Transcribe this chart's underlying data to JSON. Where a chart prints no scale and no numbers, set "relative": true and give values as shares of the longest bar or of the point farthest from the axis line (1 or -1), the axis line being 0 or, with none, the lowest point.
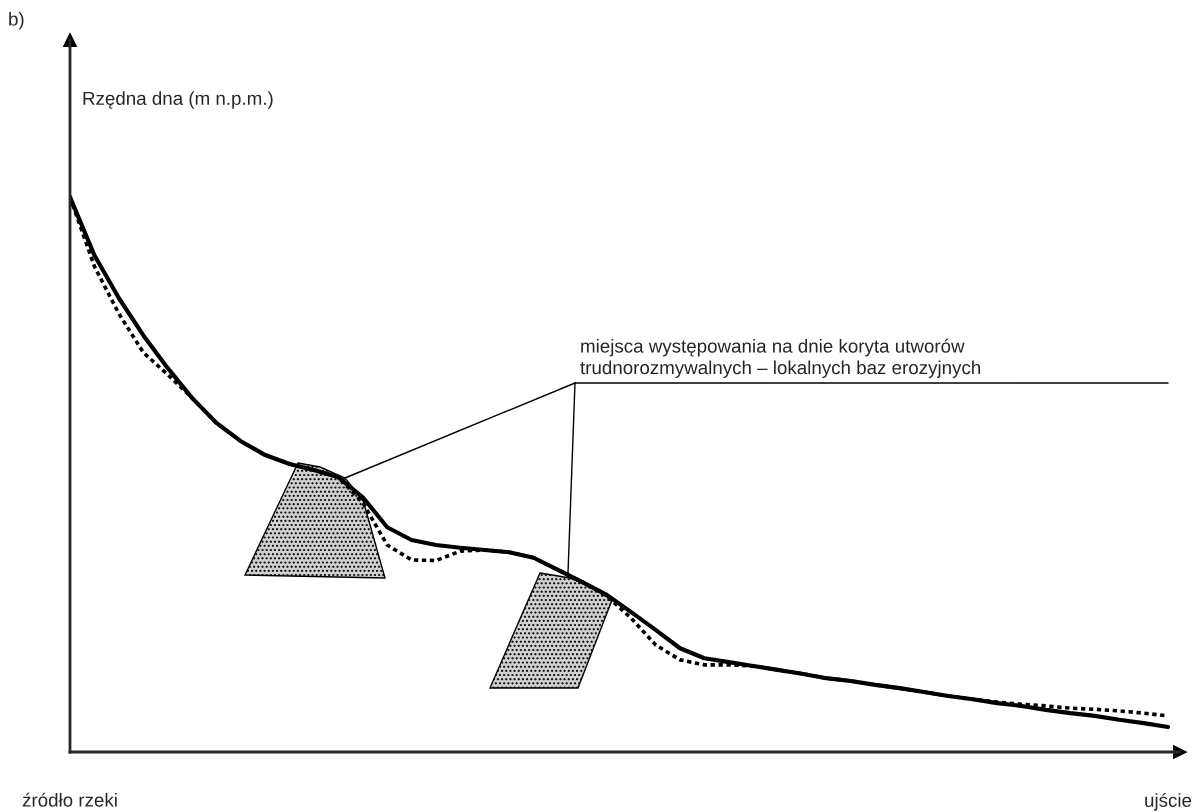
{
  "chart_data": {
    "type": "line",
    "title": "b)",
    "ylabel": "Rzędna dna (m n.p.m.)",
    "relative": true,
    "grid": false,
    "legend": false,
    "categories": [
      "źródło rzeki",
      null,
      null,
      null,
      null,
      null,
      null,
      null,
      null,
      null,
      null,
      null,
      null,
      null,
      null,
      null,
      null,
      null,
      null,
      null,
      null,
      null,
      null,
      null,
      null,
      null,
      null,
      null,
      null,
      null,
      null,
      null,
      null,
      null,
      null,
      null,
      null,
      null,
      null,
      null,
      null,
      null,
      null,
      null,
      null,
      "ujście"
    ],
    "series": [
      {
        "color": "#000000",
        "line_style": "solid",
        "values": [
          1.0,
          0.895,
          0.818,
          0.751,
          0.692,
          0.638,
          0.593,
          0.56,
          0.535,
          0.519,
          0.508,
          0.495,
          0.459,
          0.405,
          0.382,
          0.373,
          0.368,
          0.364,
          0.36,
          0.35,
          0.328,
          0.306,
          0.283,
          0.252,
          0.22,
          0.187,
          0.169,
          0.162,
          0.155,
          0.148,
          0.141,
          0.133,
          0.128,
          0.121,
          0.115,
          0.108,
          0.101,
          0.095,
          0.088,
          0.083,
          0.076,
          0.07,
          0.065,
          0.058,
          0.052,
          0.045
        ]
      },
      {
        "color": "#000000",
        "line_style": "dotted",
        "values": [
          1.0,
          0.875,
          0.79,
          0.72,
          0.68,
          0.638,
          0.593,
          0.56,
          0.535,
          0.519,
          0.508,
          0.495,
          0.449,
          0.373,
          0.346,
          0.345,
          0.362,
          0.364,
          0.36,
          0.35,
          0.328,
          0.306,
          0.281,
          0.241,
          0.193,
          0.166,
          0.157,
          0.157,
          0.155,
          0.148,
          0.141,
          0.133,
          0.128,
          0.121,
          0.115,
          0.108,
          0.101,
          0.095,
          0.09,
          0.086,
          0.083,
          0.079,
          0.077,
          0.074,
          0.07,
          0.065
        ]
      }
    ],
    "annotations": [
      "miejsca występowania na dnie koryta utworów\ntrudnorozmywalnych – lokalnych baz erozyjnych"
    ]
  }
}
